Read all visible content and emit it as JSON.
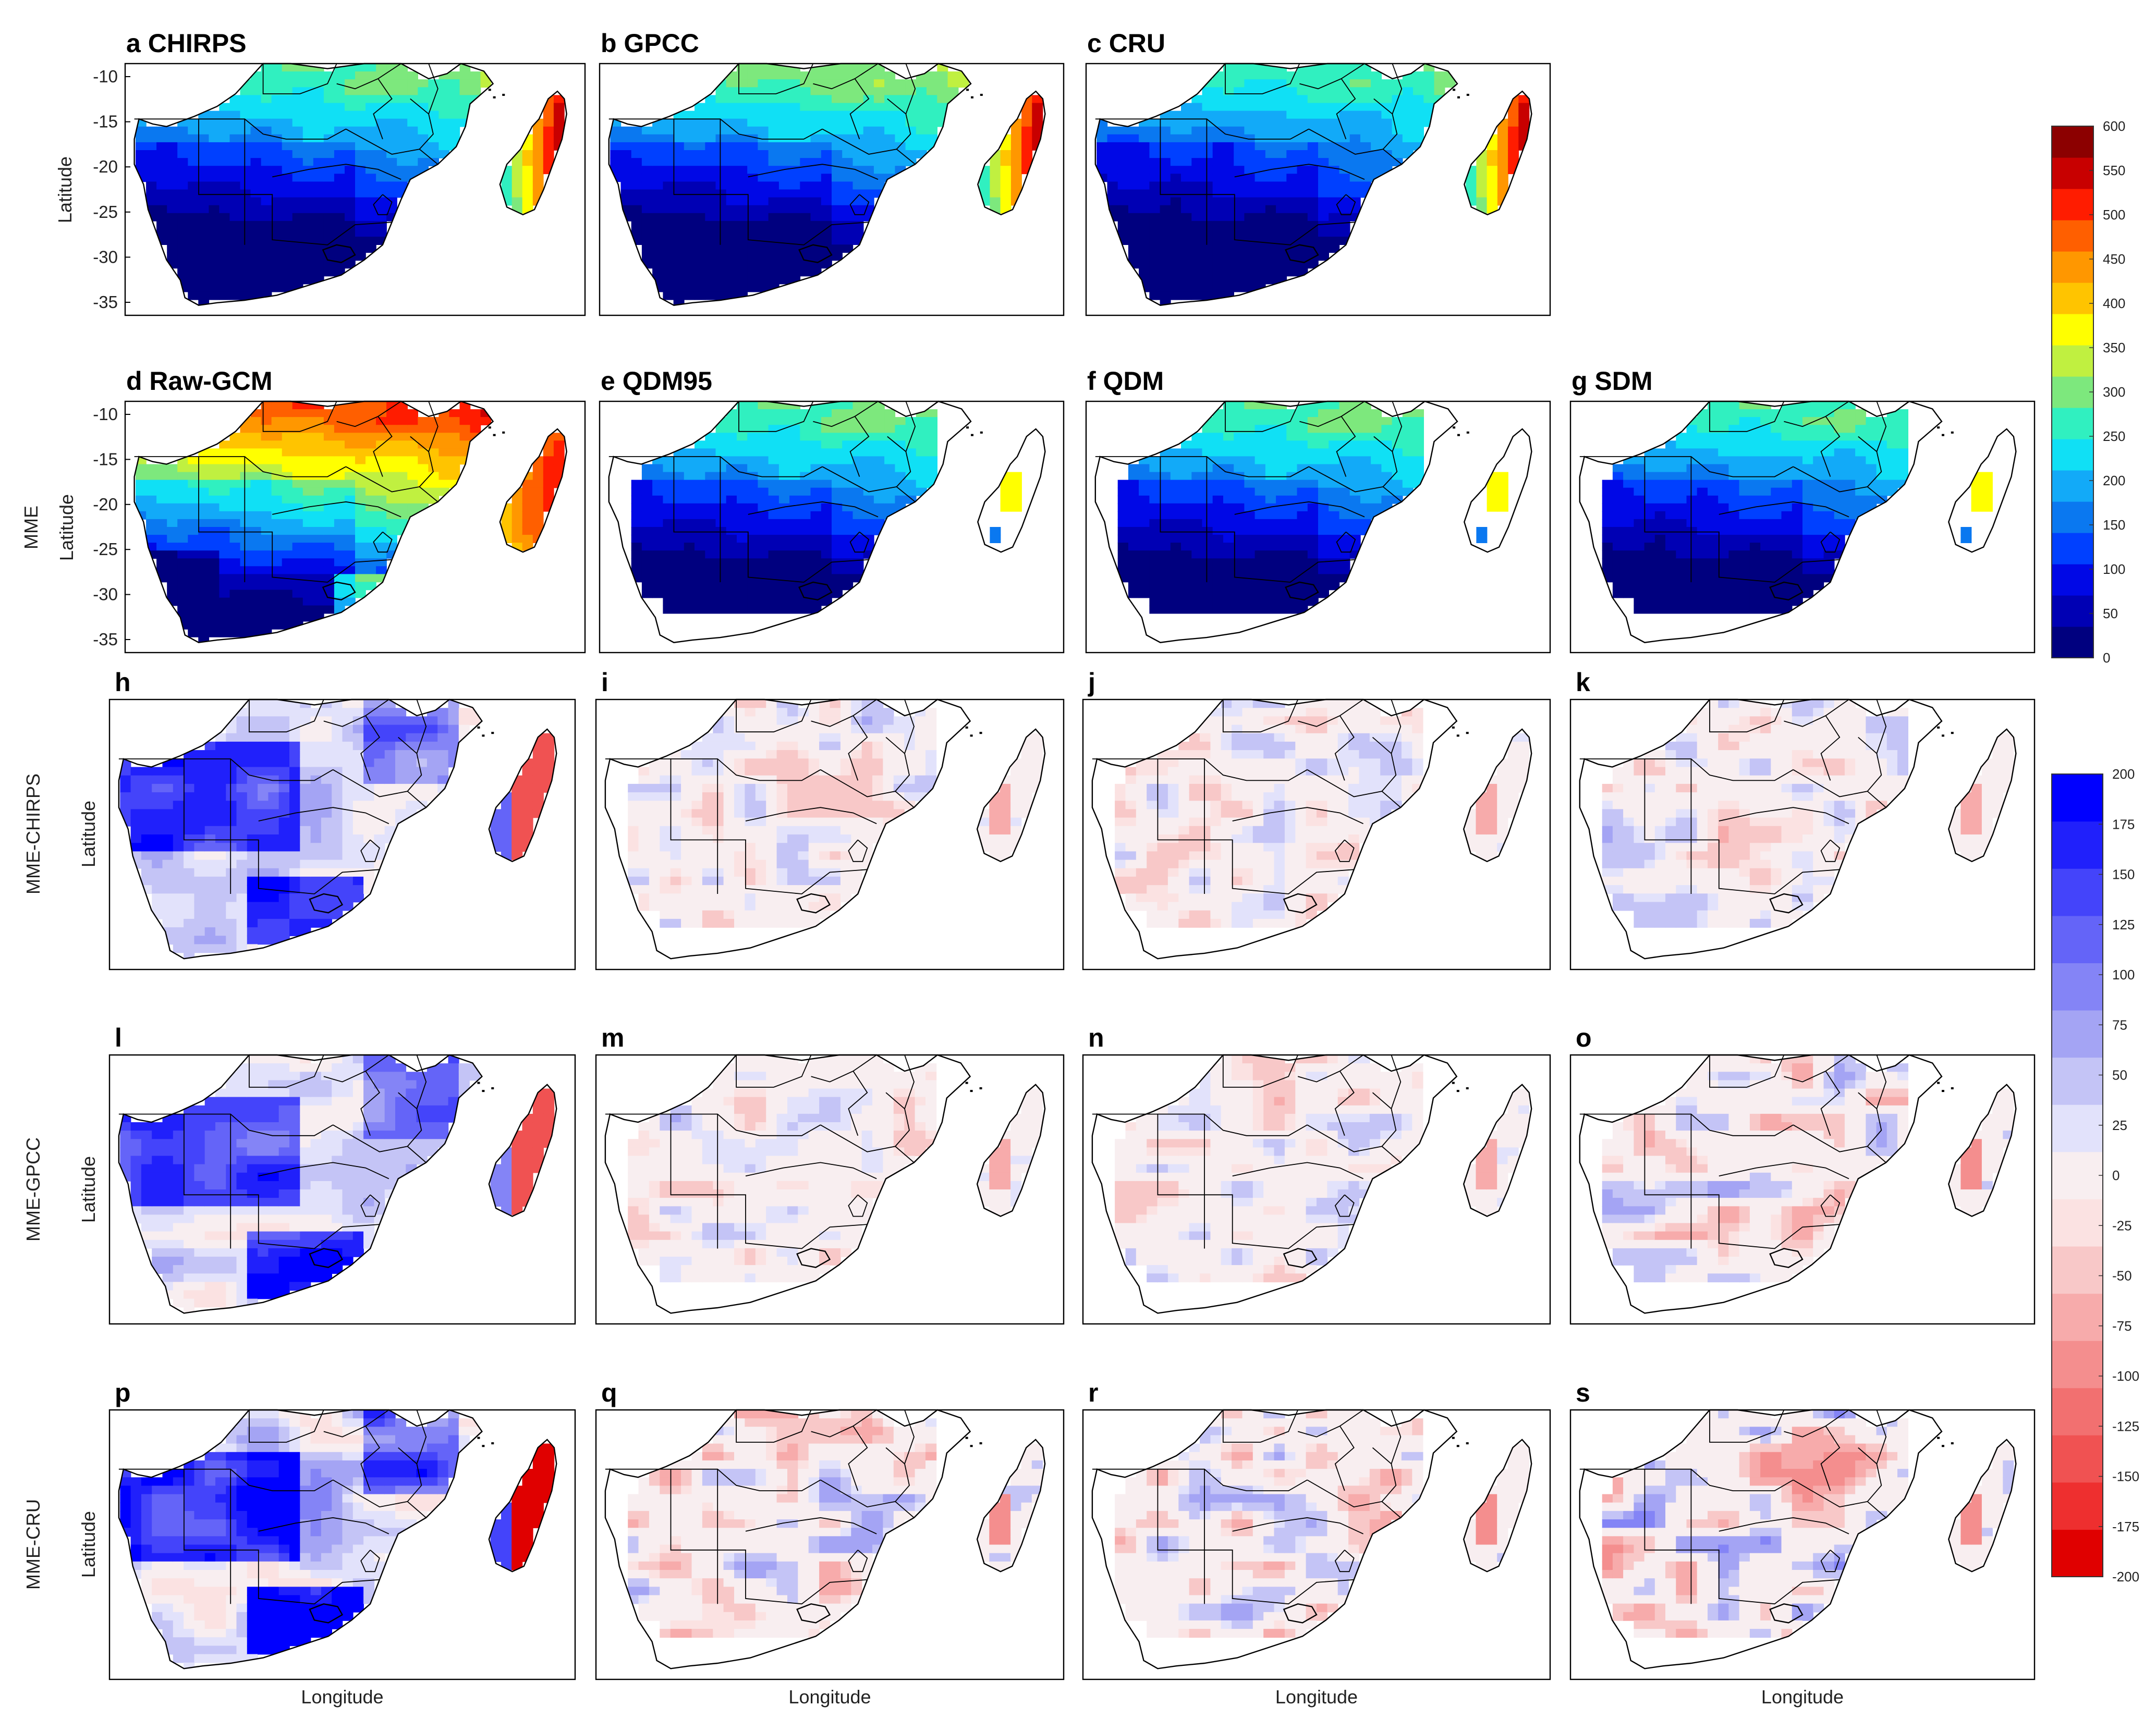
{
  "panels": [
    {
      "id": "a",
      "title": "a CHIRPS",
      "row": 0,
      "col": 0,
      "kind": "abs",
      "scale": 0.85,
      "madMode": "east"
    },
    {
      "id": "b",
      "title": "b GPCC",
      "row": 0,
      "col": 1,
      "kind": "abs",
      "scale": 0.9,
      "madMode": "east"
    },
    {
      "id": "c",
      "title": "c CRU",
      "row": 0,
      "col": 2,
      "kind": "abs",
      "scale": 0.8,
      "madMode": "east"
    },
    {
      "id": "d",
      "title": "d Raw-GCM",
      "row": 1,
      "col": 0,
      "kind": "abs",
      "scale": 1.15,
      "madMode": "full"
    },
    {
      "id": "e",
      "title": "e QDM95",
      "row": 1,
      "col": 1,
      "kind": "abs",
      "scale": 0.85,
      "madMode": "strip",
      "masked": true
    },
    {
      "id": "f",
      "title": "f QDM",
      "row": 1,
      "col": 2,
      "kind": "abs",
      "scale": 0.85,
      "madMode": "strip",
      "masked": true
    },
    {
      "id": "g",
      "title": "g SDM",
      "row": 1,
      "col": 3,
      "kind": "abs",
      "scale": 0.82,
      "madMode": "strip",
      "masked": true
    },
    {
      "id": "h",
      "title": "h",
      "row": 2,
      "col": 0,
      "kind": "diff",
      "strength": 1.0
    },
    {
      "id": "i",
      "title": "i",
      "row": 2,
      "col": 1,
      "kind": "diff",
      "strength": 0.12,
      "masked": true
    },
    {
      "id": "j",
      "title": "j",
      "row": 2,
      "col": 2,
      "kind": "diff",
      "strength": 0.12,
      "masked": true
    },
    {
      "id": "k",
      "title": "k",
      "row": 2,
      "col": 3,
      "kind": "diff",
      "strength": 0.2,
      "masked": true
    },
    {
      "id": "l",
      "title": "l",
      "row": 3,
      "col": 0,
      "kind": "diff",
      "strength": 0.95
    },
    {
      "id": "m",
      "title": "m",
      "row": 3,
      "col": 1,
      "kind": "diff",
      "strength": 0.18,
      "masked": true
    },
    {
      "id": "n",
      "title": "n",
      "row": 3,
      "col": 2,
      "kind": "diff",
      "strength": 0.18,
      "masked": true
    },
    {
      "id": "o",
      "title": "o",
      "row": 3,
      "col": 3,
      "kind": "diff",
      "strength": 0.25,
      "masked": true
    },
    {
      "id": "p",
      "title": "p",
      "row": 4,
      "col": 0,
      "kind": "diff",
      "strength": 1.25
    },
    {
      "id": "q",
      "title": "q",
      "row": 4,
      "col": 1,
      "kind": "diff",
      "strength": 0.25,
      "masked": true
    },
    {
      "id": "r",
      "title": "r",
      "row": 4,
      "col": 2,
      "kind": "diff",
      "strength": 0.25,
      "masked": true
    },
    {
      "id": "s",
      "title": "s",
      "row": 4,
      "col": 3,
      "kind": "diff",
      "strength": 0.3,
      "masked": true
    }
  ],
  "row_labels": [
    "",
    "MME",
    "MME-CHIRPS",
    "MME-GPCC",
    "MME-CRU"
  ],
  "latitude_label": "Latitude",
  "longitude_label": "Longitude",
  "lat_ticks": [
    "-10",
    "-15",
    "-20",
    "-25",
    "-30",
    "-35"
  ],
  "colorbar_abs": {
    "ticks": [
      "600",
      "550",
      "500",
      "450",
      "400",
      "350",
      "300",
      "250",
      "200",
      "150",
      "100",
      "50",
      "0"
    ],
    "colors": [
      "#00007f",
      "#0000b4",
      "#0008e6",
      "#0040ff",
      "#0a78f0",
      "#12aaf8",
      "#10e0f5",
      "#30f0c0",
      "#7de87d",
      "#c0f040",
      "#ffff00",
      "#ffc400",
      "#ff9700",
      "#ff5f00",
      "#ff1c00",
      "#c80000",
      "#8c0000"
    ]
  },
  "colorbar_diff": {
    "ticks": [
      "200",
      "175",
      "150",
      "125",
      "100",
      "75",
      "50",
      "25",
      "0",
      "-25",
      "-50",
      "-75",
      "-100",
      "-125",
      "-150",
      "-175",
      "-200"
    ],
    "colors": [
      "#0000ff",
      "#2020fb",
      "#4444fa",
      "#6464f8",
      "#8484f6",
      "#a4a4f4",
      "#c4c4f6",
      "#e2e2fb",
      "#f8eef0",
      "#fbe2e2",
      "#f8c8c8",
      "#f7abab",
      "#f48e8e",
      "#f27070",
      "#f05252",
      "#ee2f2f",
      "#e00000"
    ]
  }
}
